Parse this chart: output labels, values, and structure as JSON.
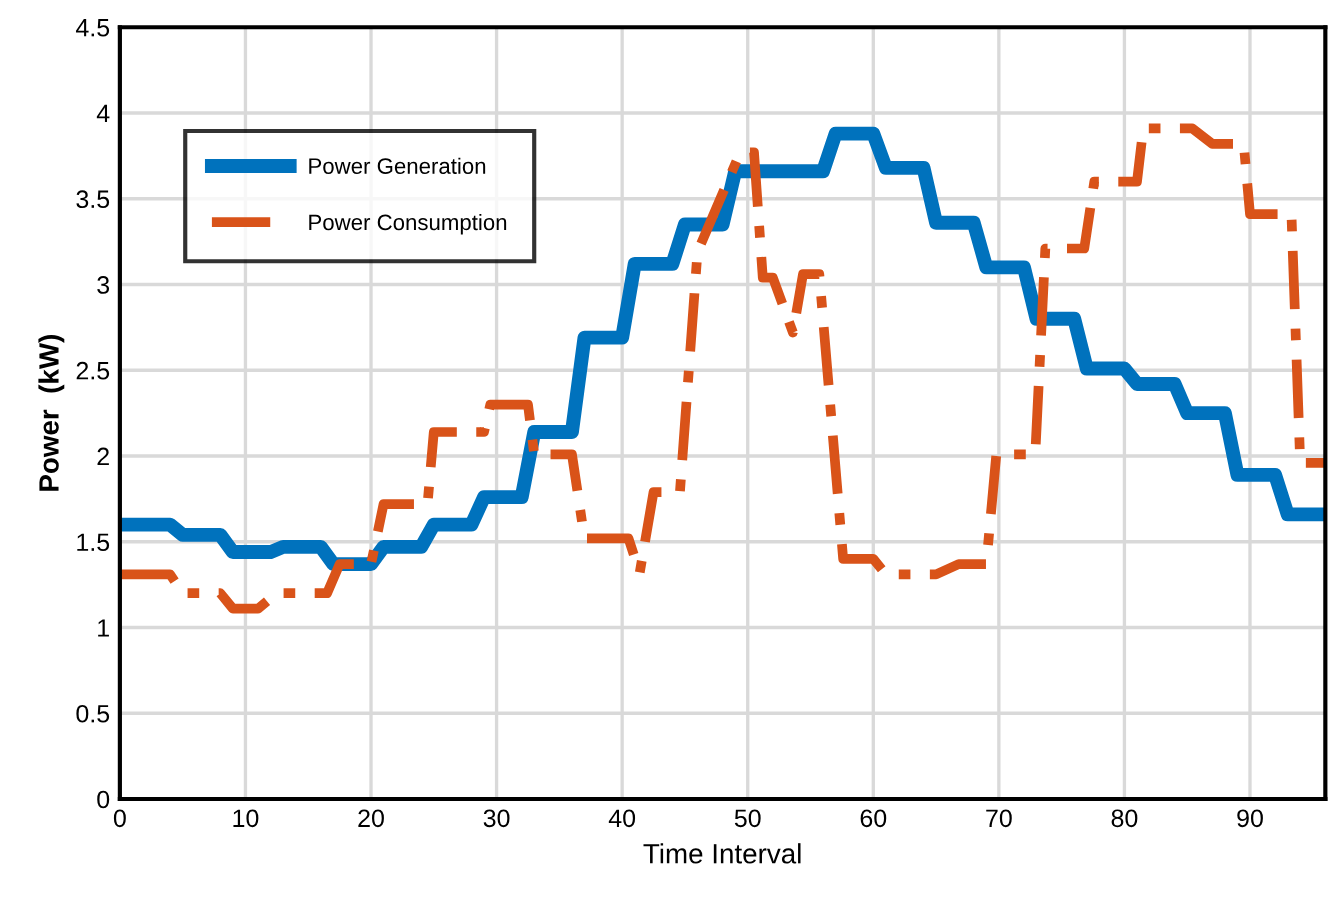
{
  "chart_data": {
    "type": "line",
    "xlabel": "Time Interval",
    "ylabel": "Power  (kW)",
    "xlim": [
      0,
      96
    ],
    "xticks": [
      0,
      10,
      20,
      30,
      40,
      50,
      60,
      70,
      80,
      90
    ],
    "ylim": [
      0,
      4.5
    ],
    "yticks": [
      0,
      0.5,
      1,
      1.5,
      2,
      2.5,
      3,
      3.5,
      4,
      4.5
    ],
    "grid": true,
    "legend": "top left",
    "marker": "none",
    "series": [
      {
        "name": "Power Generation",
        "color": "#0072bd",
        "line_style": "solid",
        "x": [
          0,
          4,
          5,
          8,
          9,
          12,
          13,
          16,
          17,
          20,
          21,
          24,
          25,
          28,
          29,
          32,
          33,
          36,
          37,
          40,
          41,
          44,
          45,
          48,
          49,
          56,
          57,
          60,
          61,
          64,
          65,
          68,
          69,
          72,
          73,
          76,
          77,
          80,
          81,
          84,
          85,
          88,
          89,
          92,
          93,
          96
        ],
        "values": [
          1.6,
          1.6,
          1.54,
          1.54,
          1.44,
          1.44,
          1.47,
          1.47,
          1.37,
          1.37,
          1.47,
          1.47,
          1.6,
          1.6,
          1.76,
          1.76,
          2.14,
          2.14,
          2.69,
          2.69,
          3.12,
          3.12,
          3.35,
          3.35,
          3.66,
          3.66,
          3.88,
          3.88,
          3.68,
          3.68,
          3.36,
          3.36,
          3.1,
          3.1,
          2.8,
          2.8,
          2.51,
          2.51,
          2.42,
          2.42,
          2.25,
          2.25,
          1.89,
          1.89,
          1.66,
          1.66
        ]
      },
      {
        "name": "Power Consumption",
        "color": "#d95319",
        "line_style": "dashdot",
        "x": [
          0,
          4,
          5,
          8,
          9,
          11,
          12.5,
          16.5,
          17.5,
          20,
          21,
          24.5,
          25,
          29,
          29.5,
          32.5,
          33,
          36,
          37,
          40.5,
          41.4,
          42.5,
          44.6,
          46,
          49.4,
          50.5,
          51.2,
          52,
          53.6,
          54.4,
          55.7,
          57.6,
          60,
          61,
          65,
          66.8,
          69,
          69.8,
          72.9,
          73.7,
          76.8,
          77.6,
          81,
          81.5,
          85.4,
          87,
          89.5,
          90,
          93.3,
          94,
          96
        ],
        "values": [
          1.31,
          1.31,
          1.2,
          1.2,
          1.11,
          1.11,
          1.2,
          1.2,
          1.37,
          1.37,
          1.72,
          1.72,
          2.14,
          2.14,
          2.3,
          2.3,
          2.01,
          2.01,
          1.52,
          1.52,
          1.32,
          1.79,
          1.79,
          3.19,
          3.77,
          3.77,
          3.04,
          3.04,
          2.72,
          3.06,
          3.06,
          1.4,
          1.4,
          1.31,
          1.31,
          1.37,
          1.37,
          2.01,
          2.01,
          3.21,
          3.21,
          3.6,
          3.6,
          3.91,
          3.91,
          3.82,
          3.82,
          3.41,
          3.41,
          1.96,
          1.96
        ]
      }
    ]
  }
}
